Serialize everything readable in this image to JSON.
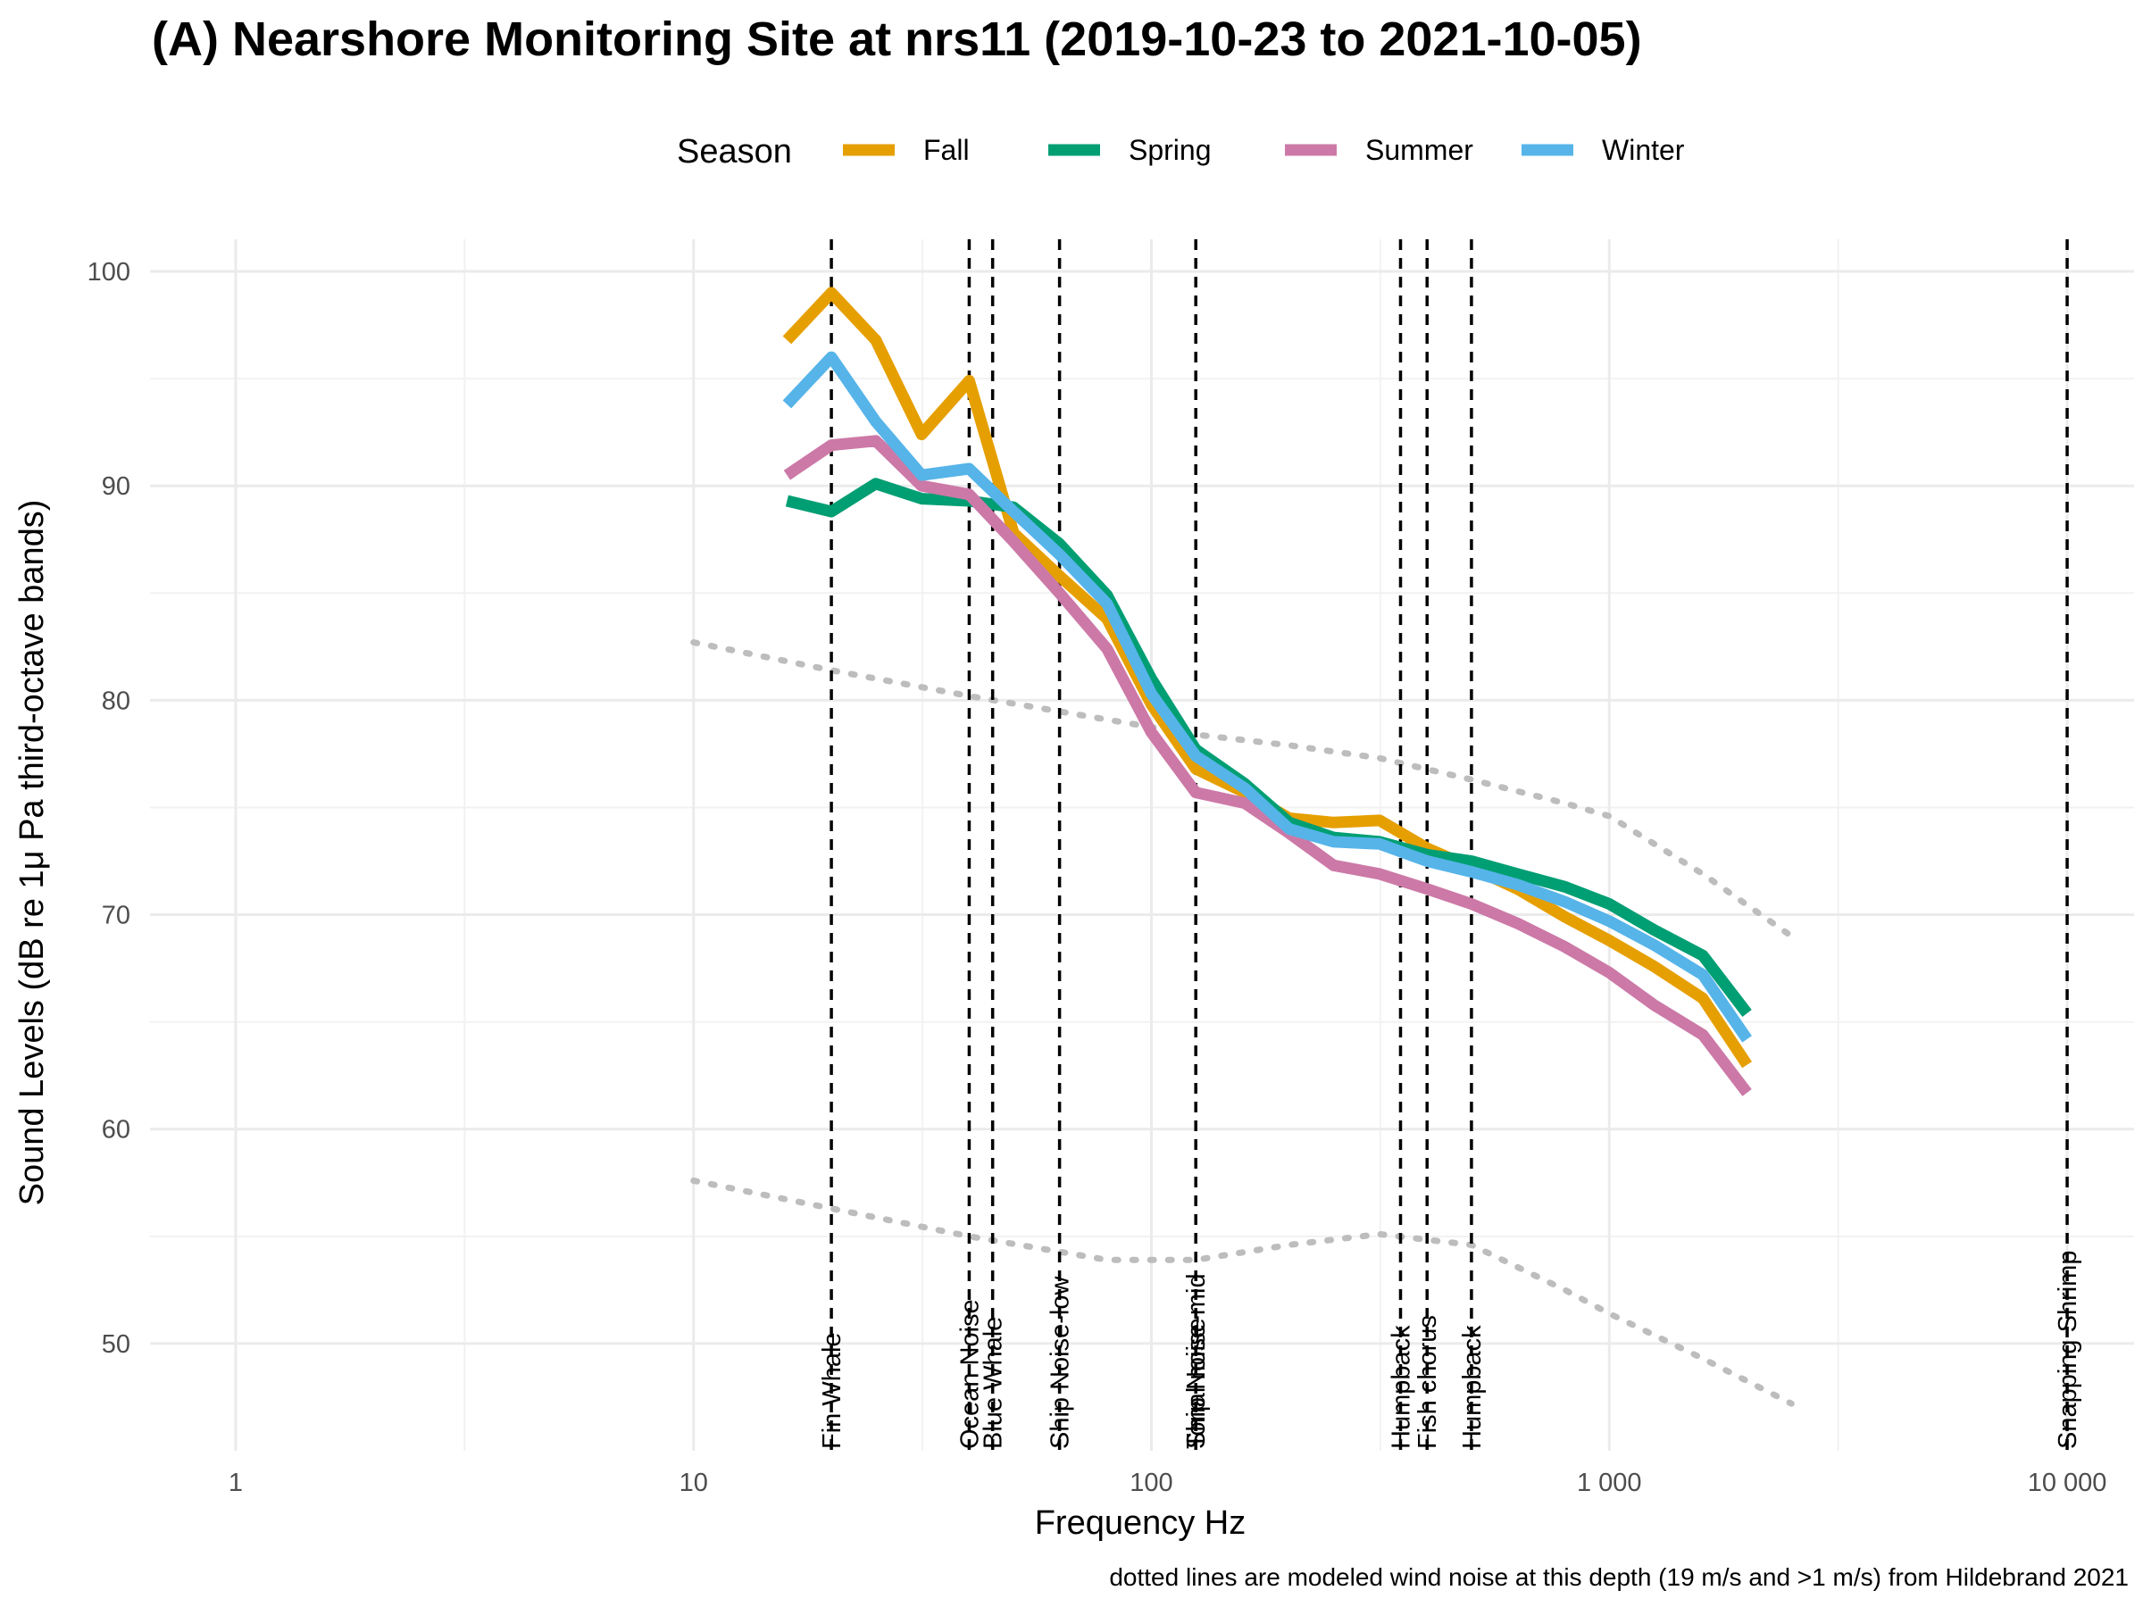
{
  "chart_data": {
    "type": "line",
    "title": "(A) Nearshore Monitoring Site at nrs11 (2019-10-23 to 2021-10-05)",
    "xlabel": "Frequency Hz",
    "ylabel": "Sound Levels (dB re 1μ Pa third-octave bands)",
    "caption": "dotted lines are modeled wind noise at this depth (19 m/s and >1 m/s) from Hildebrand 2021",
    "x_scale": "log10",
    "xlim": [
      0.65,
      14000
    ],
    "ylim": [
      45,
      101.5
    ],
    "x_ticks": [
      {
        "value": 1,
        "label": "1"
      },
      {
        "value": 10,
        "label": "10"
      },
      {
        "value": 100,
        "label": "100"
      },
      {
        "value": 1000,
        "label": "1 000"
      },
      {
        "value": 10000,
        "label": "10 000"
      }
    ],
    "y_ticks": [
      {
        "value": 50,
        "label": "50"
      },
      {
        "value": 60,
        "label": "60"
      },
      {
        "value": 70,
        "label": "70"
      },
      {
        "value": 80,
        "label": "80"
      },
      {
        "value": 90,
        "label": "90"
      },
      {
        "value": 100,
        "label": "100"
      }
    ],
    "grid": true,
    "legend": {
      "title": "Season",
      "position": "top"
    },
    "x": [
      16,
      20,
      25,
      31.5,
      40,
      50,
      63,
      80,
      100,
      125,
      160,
      200,
      250,
      315,
      400,
      500,
      630,
      800,
      1000,
      1250,
      1600,
      2000
    ],
    "series": [
      {
        "name": "Fall",
        "color": "#E69F00",
        "values": [
          96.8,
          99.0,
          96.8,
          92.4,
          94.9,
          87.8,
          85.8,
          83.8,
          79.8,
          76.8,
          75.7,
          74.5,
          74.3,
          74.4,
          73.1,
          72.2,
          71.2,
          69.9,
          68.8,
          67.6,
          66.1,
          63.0
        ]
      },
      {
        "name": "Spring",
        "color": "#009E73",
        "values": [
          89.3,
          88.8,
          90.1,
          89.4,
          89.3,
          89.0,
          87.3,
          84.9,
          81.0,
          77.7,
          76.1,
          74.3,
          73.6,
          73.4,
          72.8,
          72.5,
          71.9,
          71.3,
          70.5,
          69.3,
          68.1,
          65.4
        ]
      },
      {
        "name": "Summer",
        "color": "#CC79A7",
        "values": [
          90.5,
          91.9,
          92.1,
          90.0,
          89.6,
          87.4,
          85.0,
          82.4,
          78.5,
          75.7,
          75.2,
          73.8,
          72.3,
          71.9,
          71.2,
          70.5,
          69.6,
          68.5,
          67.3,
          65.8,
          64.4,
          61.7
        ]
      },
      {
        "name": "Winter",
        "color": "#56B4E9",
        "values": [
          93.8,
          96.0,
          93.0,
          90.5,
          90.8,
          88.8,
          86.8,
          84.5,
          80.3,
          77.4,
          75.9,
          74.0,
          73.4,
          73.3,
          72.5,
          72.0,
          71.4,
          70.6,
          69.7,
          68.6,
          67.2,
          64.2
        ]
      }
    ],
    "wind_noise": [
      {
        "name": "19 m/s",
        "x": [
          10,
          20,
          40,
          80,
          125,
          200,
          315,
          500,
          800,
          1000,
          1600,
          2500
        ],
        "values": [
          82.7,
          81.4,
          80.2,
          79.1,
          78.4,
          77.9,
          77.3,
          76.3,
          75.2,
          74.6,
          71.9,
          69.0
        ]
      },
      {
        "name": ">1 m/s",
        "x": [
          10,
          20,
          40,
          80,
          125,
          200,
          315,
          500,
          800,
          1000,
          1600,
          2500
        ],
        "values": [
          57.6,
          56.3,
          55.0,
          53.9,
          53.9,
          54.6,
          55.1,
          54.6,
          52.5,
          51.4,
          49.3,
          47.2
        ]
      }
    ],
    "annotations": [
      {
        "x": 20,
        "label": "Fin Whale"
      },
      {
        "x": 40,
        "label": "Ocean Noise"
      },
      {
        "x": 45,
        "label": "Blue Whale"
      },
      {
        "x": 63,
        "label": "Ship Noise-low"
      },
      {
        "x": 125,
        "label": "Ship Noise-mid"
      },
      {
        "x": 125,
        "label": "Tonal noise"
      },
      {
        "x": 350,
        "label": "Humpback"
      },
      {
        "x": 400,
        "label": "Fish chorus"
      },
      {
        "x": 500,
        "label": "Humpback"
      },
      {
        "x": 10000,
        "label": "Snapping Shrimp"
      }
    ]
  }
}
